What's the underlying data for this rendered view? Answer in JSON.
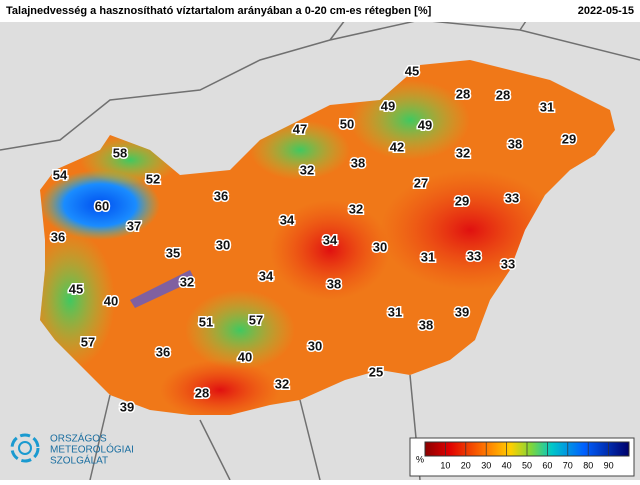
{
  "header": {
    "title": "Talajnedvesség a hasznosítható víztartalom arányában a 0-20 cm-es rétegben [%]",
    "date": "2022-05-15"
  },
  "stations": [
    45,
    28,
    28,
    31,
    29,
    49,
    49,
    47,
    50,
    42,
    32,
    38,
    38,
    58,
    54,
    52,
    27,
    32,
    36,
    29,
    33,
    32,
    60,
    37,
    34,
    36,
    34,
    30,
    35,
    30,
    31,
    33,
    33,
    32,
    34,
    38,
    45,
    40,
    31,
    38,
    39,
    51,
    57,
    57,
    36,
    30,
    40,
    25,
    32,
    28,
    39
  ],
  "legend": {
    "unit": "%",
    "ticks": [
      10,
      20,
      30,
      40,
      50,
      60,
      70,
      80,
      90
    ]
  },
  "logo": {
    "lines": [
      "ORSZÁGOS",
      "METEOROLÓGIAI",
      "SZOLGÁLAT"
    ]
  }
}
